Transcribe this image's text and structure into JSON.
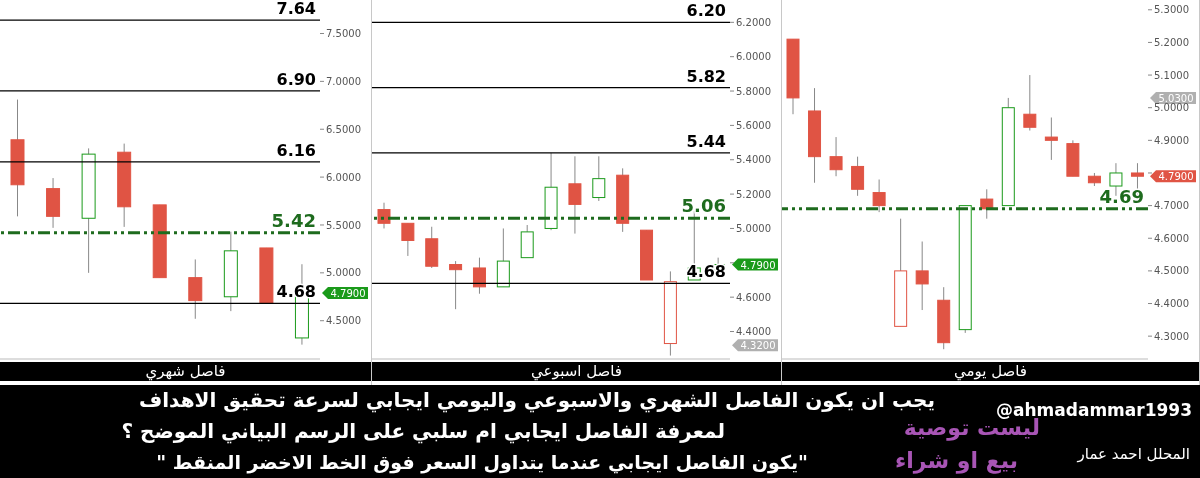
{
  "chart_data": [
    {
      "type": "candlestick",
      "xlabel": "فاصل شهري",
      "tick_labels": "y",
      "categories": [
        null,
        null,
        null,
        null,
        null,
        null,
        null,
        null,
        null
      ],
      "ohlc": [
        [
          6.39,
          6.81,
          5.59,
          5.92
        ],
        [
          5.88,
          5.99,
          5.47,
          5.59
        ],
        [
          5.57,
          6.3,
          5.0,
          6.24
        ],
        [
          6.26,
          6.35,
          5.48,
          5.69
        ],
        [
          5.71,
          5.71,
          4.95,
          4.95
        ],
        [
          4.95,
          5.14,
          4.52,
          4.71
        ],
        [
          4.75,
          5.43,
          4.6,
          5.23
        ],
        [
          5.26,
          5.26,
          4.69,
          4.69
        ],
        [
          4.32,
          5.09,
          4.25,
          4.79
        ]
      ],
      "colors": [
        "#e05444",
        "#e05444",
        "#1a9a1a",
        "#e05444",
        "#e05444",
        "#e05444",
        "#1a9a1a",
        "#e05444",
        "#1a9a1a"
      ],
      "ylim": [
        4.1,
        7.85
      ],
      "yticks": [
        {
          "value": 4.5,
          "label": "4.5000"
        },
        {
          "value": 5,
          "label": "5.0000"
        },
        {
          "value": 5.5,
          "label": "5.5000"
        },
        {
          "value": 6,
          "label": "6.0000"
        },
        {
          "value": 6.5,
          "label": "6.5000"
        },
        {
          "value": 7,
          "label": "7.0000"
        },
        {
          "value": 7.5,
          "label": "7.5000"
        }
      ],
      "ref_lines": [
        {
          "axis": "y",
          "value": 7.64,
          "label": "7.64",
          "color": "#000000",
          "line_style": "solid"
        },
        {
          "axis": "y",
          "value": 6.9,
          "label": "6.90",
          "color": "#000000",
          "line_style": "solid"
        },
        {
          "axis": "y",
          "value": 6.16,
          "label": "6.16",
          "color": "#000000",
          "line_style": "solid"
        },
        {
          "axis": "y",
          "value": 5.42,
          "label": "5.42",
          "color": "#1e6b1e",
          "line_style": "dashed"
        },
        {
          "axis": "y",
          "value": 4.68,
          "label": "4.68",
          "color": "#000000",
          "line_style": "solid"
        }
      ],
      "annotations": [
        "4.7900"
      ]
    },
    {
      "type": "candlestick",
      "xlabel": "فاصل اسبوعي",
      "tick_labels": "y",
      "categories": [
        null,
        null,
        null,
        null,
        null,
        null,
        null,
        null,
        null,
        null,
        null,
        null,
        null,
        null,
        null
      ],
      "ohlc": [
        [
          5.11,
          5.15,
          5.0,
          5.03
        ],
        [
          5.03,
          5.03,
          4.84,
          4.93
        ],
        [
          4.94,
          5.01,
          4.77,
          4.78
        ],
        [
          4.79,
          4.81,
          4.53,
          4.76
        ],
        [
          4.77,
          4.83,
          4.62,
          4.66
        ],
        [
          4.66,
          5.0,
          4.66,
          4.81
        ],
        [
          4.83,
          5.02,
          4.83,
          4.98
        ],
        [
          5.0,
          5.44,
          4.99,
          5.24
        ],
        [
          5.26,
          5.42,
          4.97,
          5.14
        ],
        [
          5.18,
          5.42,
          5.16,
          5.29
        ],
        [
          5.31,
          5.35,
          4.98,
          5.03
        ],
        [
          4.99,
          4.99,
          4.7,
          4.7
        ],
        [
          4.33,
          4.75,
          4.26,
          4.69
        ],
        [
          4.7,
          5.1,
          4.7,
          4.77
        ],
        [
          4.76,
          4.83,
          4.73,
          4.79
        ]
      ],
      "colors": [
        "#e05444",
        "#e05444",
        "#e05444",
        "#e05444",
        "#e05444",
        "#1a9a1a",
        "#1a9a1a",
        "#1a9a1a",
        "#e05444",
        "#1a9a1a",
        "#e05444",
        "#e05444",
        "#e05444",
        "#1a9a1a",
        "#1a9a1a"
      ],
      "ylim": [
        4.24,
        6.33
      ],
      "yticks": [
        {
          "value": 4.4,
          "label": "4.4000"
        },
        {
          "value": 4.6,
          "label": "4.6000"
        },
        {
          "value": 4.8,
          "label": null
        },
        {
          "value": 5,
          "label": "5.0000"
        },
        {
          "value": 5.2,
          "label": "5.2000"
        },
        {
          "value": 5.4,
          "label": "5.4000"
        },
        {
          "value": 5.6,
          "label": "5.6000"
        },
        {
          "value": 5.8,
          "label": "5.8000"
        },
        {
          "value": 6,
          "label": "6.0000"
        },
        {
          "value": 6.2,
          "label": "6.2000"
        }
      ],
      "ref_lines": [
        {
          "axis": "y",
          "value": 6.2,
          "label": "6.20",
          "color": "#000000",
          "line_style": "solid"
        },
        {
          "axis": "y",
          "value": 5.82,
          "label": "5.82",
          "color": "#000000",
          "line_style": "solid"
        },
        {
          "axis": "y",
          "value": 5.44,
          "label": "5.44",
          "color": "#000000",
          "line_style": "solid"
        },
        {
          "axis": "y",
          "value": 5.06,
          "label": "5.06",
          "color": "#1e6b1e",
          "line_style": "dashed"
        },
        {
          "axis": "y",
          "value": 4.68,
          "label": "4.68",
          "color": "#000000",
          "line_style": "solid"
        }
      ],
      "annotations": [
        "4.7900",
        "4.3200"
      ]
    },
    {
      "type": "candlestick",
      "xlabel": "فاصل يومي",
      "tick_labels": "y",
      "categories": [
        null,
        null,
        null,
        null,
        null,
        null,
        null,
        null,
        null,
        null,
        null,
        null,
        null,
        null,
        null,
        null,
        null
      ],
      "ohlc": [
        [
          5.21,
          5.21,
          4.98,
          5.03
        ],
        [
          4.99,
          5.06,
          4.77,
          4.85
        ],
        [
          4.85,
          4.91,
          4.79,
          4.81
        ],
        [
          4.82,
          4.85,
          4.73,
          4.75
        ],
        [
          4.74,
          4.78,
          4.68,
          4.7
        ],
        [
          4.33,
          4.66,
          4.33,
          4.5
        ],
        [
          4.5,
          4.59,
          4.38,
          4.46
        ],
        [
          4.41,
          4.45,
          4.26,
          4.28
        ],
        [
          4.32,
          4.7,
          4.31,
          4.7
        ],
        [
          4.72,
          4.75,
          4.66,
          4.69
        ],
        [
          4.7,
          5.03,
          4.7,
          5.0
        ],
        [
          4.98,
          5.1,
          4.93,
          4.94
        ],
        [
          4.91,
          4.97,
          4.84,
          4.9
        ],
        [
          4.89,
          4.9,
          4.79,
          4.79
        ],
        [
          4.79,
          4.8,
          4.76,
          4.77
        ],
        [
          4.76,
          4.83,
          4.73,
          4.8
        ],
        [
          4.8,
          4.83,
          4.73,
          4.79
        ]
      ],
      "colors": [
        "#e05444",
        "#e05444",
        "#e05444",
        "#e05444",
        "#e05444",
        "#e05444",
        "#e05444",
        "#e05444",
        "#1a9a1a",
        "#e05444",
        "#1a9a1a",
        "#e05444",
        "#e05444",
        "#e05444",
        "#e05444",
        "#1a9a1a",
        "#e05444"
      ],
      "ylim": [
        4.23,
        5.33
      ],
      "yticks": [
        {
          "value": 4.3,
          "label": "4.3000"
        },
        {
          "value": 4.4,
          "label": "4.4000"
        },
        {
          "value": 4.5,
          "label": "4.5000"
        },
        {
          "value": 4.6,
          "label": "4.6000"
        },
        {
          "value": 4.7,
          "label": "4.7000"
        },
        {
          "value": 4.8,
          "label": null
        },
        {
          "value": 4.9,
          "label": "4.9000"
        },
        {
          "value": 5,
          "label": "5.0000"
        },
        {
          "value": 5.1,
          "label": "5.1000"
        },
        {
          "value": 5.2,
          "label": "5.2000"
        },
        {
          "value": 5.3,
          "label": "5.3000"
        }
      ],
      "ref_lines": [
        {
          "axis": "y",
          "value": 4.69,
          "label": "4.69",
          "color": "#1e6b1e",
          "line_style": "dashed"
        }
      ],
      "annotations": [
        "5.0300",
        "4.7900"
      ]
    },
    {
      "type": "other",
      "annotations": [
        "يجب ان يكون الفاصل الشهري والاسبوعي واليومي ايجابي لسرعة تحقيق الاهداف",
        "لمعرفة الفاصل ايجابي ام سلبي على الرسم البياني الموضح ؟",
        "\"يكون الفاصل ايجابي عندما يتداول السعر فوق الخط الاخضر المنقط \"",
        "@ahmadammar1993",
        "ليست توصية",
        "بيع او شراء",
        "المحلل احمد عمار"
      ]
    }
  ]
}
